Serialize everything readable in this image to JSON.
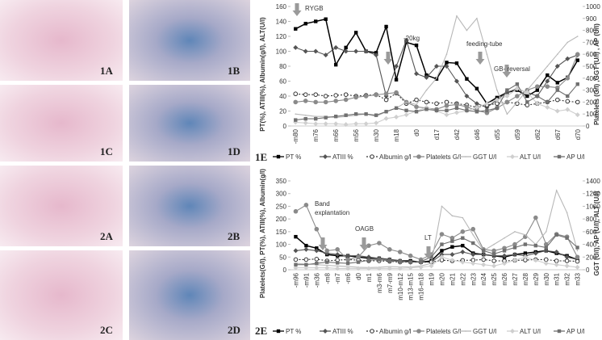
{
  "panels": [
    "1A",
    "1B",
    "1C",
    "1D",
    "2A",
    "2B",
    "2C",
    "2D"
  ],
  "chart_data": [
    {
      "type": "line",
      "panel_label": "1E",
      "y_label": "PT(%), ATIII(%), Albumin(g/l), ALT(U/l)",
      "y2_label": "Platelets (G/l) ,GGT (U/l) , AP (U/l)",
      "annotations": [
        "RYGB",
        "-20kg",
        "feeding-tube",
        "GB- reversal"
      ],
      "categories": [
        "-m80",
        null,
        "m76",
        null,
        "m66",
        null,
        "m56",
        null,
        "m30",
        null,
        "m18",
        null,
        "d0",
        null,
        "d17",
        null,
        "d42",
        null,
        "d46",
        null,
        "d55",
        null,
        "d59",
        null,
        "d62",
        null,
        "d67",
        null,
        "d70"
      ],
      "ylim": [
        0,
        160
      ],
      "yticks": [
        0,
        20,
        40,
        60,
        80,
        100,
        120,
        140,
        160
      ],
      "y2lim": [
        0,
        1000
      ],
      "y2ticks": [
        0,
        100,
        200,
        300,
        400,
        500,
        600,
        700,
        800,
        900,
        1000
      ],
      "series": [
        {
          "name": "PT  %",
          "color": "#000000",
          "values": [
            130,
            137,
            140,
            143,
            82,
            105,
            125,
            100,
            98,
            133,
            62,
            112,
            108,
            68,
            63,
            85,
            84,
            63,
            50,
            30,
            38,
            45,
            48,
            40,
            48,
            68,
            58,
            65,
            88
          ]
        },
        {
          "name": "ATIII %",
          "color": "#555555",
          "values": [
            105,
            100,
            100,
            95,
            105,
            100,
            100,
            100,
            95,
            40,
            80,
            115,
            70,
            65,
            80,
            80,
            60,
            40,
            30,
            25,
            35,
            45,
            50,
            45,
            40,
            60,
            80,
            90,
            95
          ]
        },
        {
          "name": "Albumin g/l",
          "color": "#333333",
          "values": [
            43,
            42,
            42,
            40,
            41,
            42,
            40,
            41,
            42,
            35,
            44,
            30,
            35,
            32,
            30,
            32,
            30,
            28,
            25,
            28,
            30,
            32,
            30,
            28,
            30,
            32,
            35,
            33,
            32
          ]
        },
        {
          "name": "Platelets  G/l",
          "color": "#8a8a8a",
          "axis": "y2",
          "values": [
            200,
            210,
            200,
            200,
            210,
            220,
            240,
            250,
            260,
            270,
            280,
            200,
            160,
            150,
            140,
            170,
            180,
            160,
            130,
            110,
            150,
            200,
            250,
            300,
            330,
            330,
            320,
            400,
            600
          ]
        },
        {
          "name": "GGT U/l",
          "color": "#b8b8b8",
          "axis": "y2",
          "values": [
            100,
            90,
            80,
            80,
            70,
            80,
            90,
            100,
            80,
            120,
            150,
            200,
            180,
            300,
            400,
            600,
            920,
            800,
            900,
            600,
            300,
            100,
            200,
            300,
            400,
            500,
            600,
            700,
            750
          ]
        },
        {
          "name": "ALT U/l",
          "color": "#cfcfcf",
          "values": [
            5,
            4,
            3,
            3,
            3,
            2,
            3,
            3,
            4,
            10,
            12,
            15,
            20,
            25,
            20,
            15,
            18,
            20,
            25,
            30,
            35,
            40,
            50,
            45,
            30,
            25,
            20,
            22,
            15
          ]
        },
        {
          "name": "AP  U/l",
          "color": "#707070",
          "axis": "y2",
          "values": [
            50,
            60,
            60,
            70,
            80,
            90,
            100,
            100,
            90,
            120,
            150,
            130,
            120,
            140,
            130,
            130,
            150,
            130,
            120,
            130,
            150,
            300,
            350,
            200,
            250,
            200,
            300,
            250,
            350
          ]
        }
      ]
    },
    {
      "type": "line",
      "panel_label": "2E",
      "y_label": "Platelets(G/l), PT(%), ATIII(%), Albumin(g/l)",
      "y2_label": "GGT (U/l), AP (U/l), ALT (U/l)",
      "annotations": [
        "Band explantation",
        "OAGB",
        "LT"
      ],
      "categories": [
        "-m96",
        "-m91",
        "-m36",
        "-m8",
        "-m7",
        "-m6",
        "d0",
        "m1",
        "m3-m6",
        "m7-m9",
        "m10-m12",
        "m13-m15",
        "m16-m18",
        "m19",
        "m20",
        "m21",
        "m22",
        "m23",
        "m24",
        "m25",
        "m26",
        "m27",
        "m28",
        "m29",
        "m30",
        "m31",
        "m32",
        "m33"
      ],
      "ylim": [
        0,
        350
      ],
      "yticks": [
        0,
        50,
        100,
        150,
        200,
        250,
        300,
        350
      ],
      "y2lim": [
        0,
        1400
      ],
      "y2ticks": [
        0,
        200,
        400,
        600,
        800,
        1000,
        1200,
        1400
      ],
      "series": [
        {
          "name": "PT  %",
          "color": "#000000",
          "values": [
            130,
            95,
            85,
            60,
            55,
            55,
            50,
            45,
            45,
            40,
            35,
            35,
            30,
            35,
            75,
            90,
            95,
            65,
            60,
            55,
            50,
            60,
            65,
            70,
            75,
            65,
            55,
            40
          ]
        },
        {
          "name": "ATIII %",
          "color": "#555555",
          "values": [
            75,
            80,
            75,
            65,
            60,
            55,
            55,
            50,
            45,
            40,
            35,
            30,
            30,
            30,
            60,
            60,
            70,
            60,
            60,
            55,
            55,
            60,
            55,
            65,
            75,
            70,
            50,
            40
          ]
        },
        {
          "name": "Albumin g/l",
          "color": "#333333",
          "values": [
            40,
            40,
            42,
            35,
            38,
            40,
            38,
            35,
            35,
            33,
            30,
            30,
            30,
            30,
            38,
            35,
            37,
            38,
            40,
            35,
            35,
            37,
            38,
            40,
            40,
            35,
            35,
            33
          ]
        },
        {
          "name": "Platelets  G/l",
          "color": "#8a8a8a",
          "values": [
            230,
            255,
            160,
            75,
            80,
            40,
            50,
            95,
            105,
            80,
            70,
            55,
            40,
            60,
            140,
            125,
            150,
            160,
            80,
            75,
            85,
            100,
            130,
            205,
            100,
            140,
            130,
            50
          ]
        },
        {
          "name": "GGT U/l",
          "color": "#b8b8b8",
          "axis": "y2",
          "values": [
            100,
            90,
            80,
            70,
            60,
            50,
            40,
            35,
            40,
            50,
            45,
            45,
            60,
            100,
            1000,
            850,
            820,
            550,
            300,
            400,
            500,
            600,
            550,
            400,
            600,
            1250,
            900,
            300
          ]
        },
        {
          "name": "ALT U/l",
          "color": "#cfcfcf",
          "axis": "y2",
          "values": [
            30,
            30,
            30,
            30,
            20,
            20,
            20,
            20,
            20,
            20,
            20,
            30,
            40,
            60,
            200,
            150,
            120,
            100,
            80,
            60,
            100,
            150,
            200,
            150,
            100,
            80,
            60,
            40
          ]
        },
        {
          "name": "AP  U/l",
          "color": "#707070",
          "axis": "y2",
          "values": [
            80,
            80,
            100,
            120,
            110,
            100,
            120,
            150,
            160,
            140,
            130,
            120,
            130,
            200,
            400,
            450,
            500,
            420,
            300,
            250,
            300,
            350,
            400,
            380,
            350,
            550,
            500,
            350
          ]
        }
      ]
    }
  ]
}
